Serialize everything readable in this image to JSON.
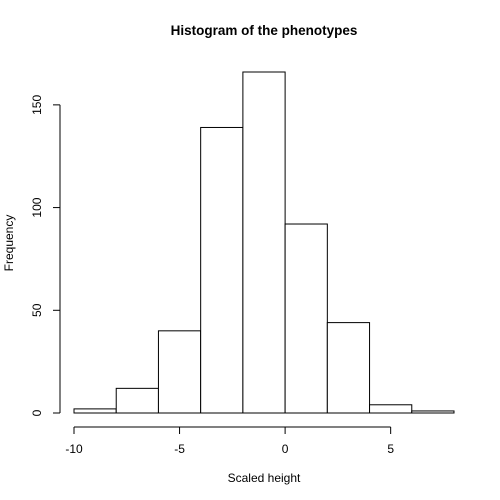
{
  "chart_data": {
    "type": "bar",
    "title": "Histogram of the phenotypes",
    "xlabel": "Scaled height",
    "ylabel": "Frequency",
    "bins": [
      {
        "x0": -10,
        "x1": -8,
        "count": 2
      },
      {
        "x0": -8,
        "x1": -6,
        "count": 12
      },
      {
        "x0": -6,
        "x1": -4,
        "count": 40
      },
      {
        "x0": -4,
        "x1": -2,
        "count": 139
      },
      {
        "x0": -2,
        "x1": 0,
        "count": 166
      },
      {
        "x0": 0,
        "x1": 2,
        "count": 92
      },
      {
        "x0": 2,
        "x1": 4,
        "count": 44
      },
      {
        "x0": 4,
        "x1": 6,
        "count": 4
      },
      {
        "x0": 6,
        "x1": 8,
        "count": 1
      }
    ],
    "xlim": [
      -10,
      8
    ],
    "ylim": [
      0,
      166
    ],
    "xticks": [
      -10,
      -5,
      0,
      5
    ],
    "yticks": [
      0,
      50,
      100,
      150
    ],
    "grid": false,
    "colors": {
      "bar_fill": "#ffffff",
      "bar_stroke": "#000000"
    }
  }
}
